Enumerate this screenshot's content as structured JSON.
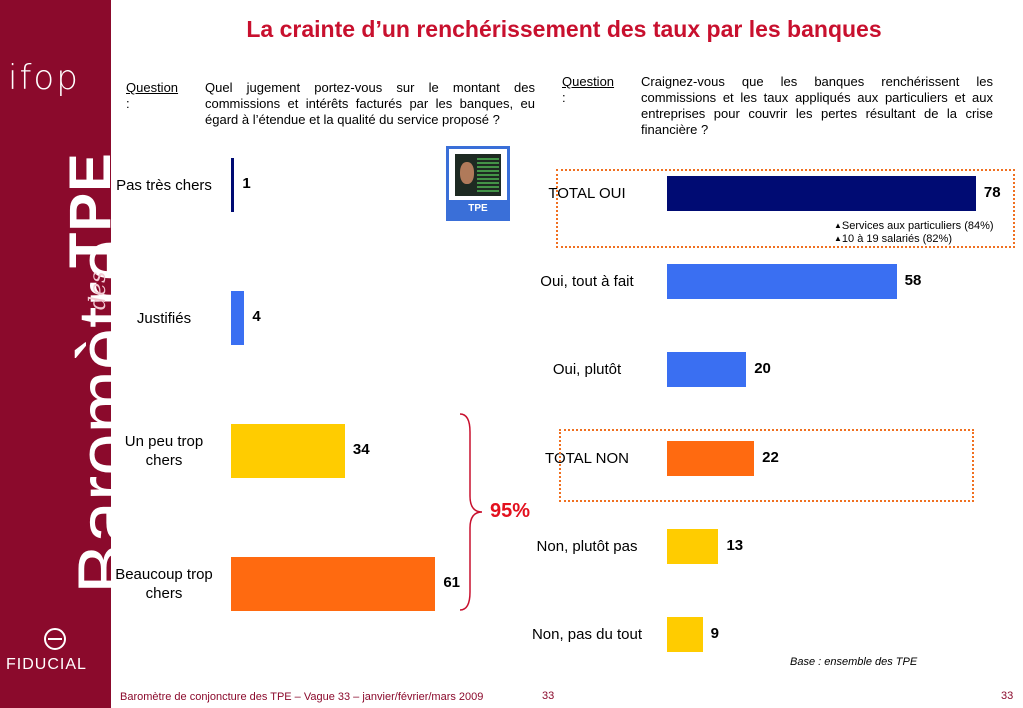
{
  "sidebar": {
    "logo": "ifop",
    "brand_main": "Baromètre",
    "brand_des": "des",
    "brand_tpe": "TPE",
    "company": "FIDUCIAL"
  },
  "title": "La crainte d’un renchérissement des taux par les banques",
  "left_question": {
    "label": "Question",
    "colon": ":",
    "text": "Quel jugement portez-vous sur le montant des commissions et intérêts facturés par les banques, eu égard à l’étendue et la qualité du service proposé ?"
  },
  "right_question": {
    "label": "Question",
    "colon": ":",
    "text": "Craignez-vous que les banques renchérissent les commissions et les taux appliqués aux particuliers et aux entreprises pour couvrir les pertes résultant de la crise financière ?"
  },
  "badge_label": "TPE",
  "colors": {
    "dark_navy": "#000b73",
    "blue": "#3a6ff2",
    "yellow": "#ffcc00",
    "orange": "#ff6a10",
    "accent_red": "#c8102e",
    "brand": "#8b0a2c"
  },
  "chart_data": [
    {
      "type": "bar",
      "orientation": "horizontal",
      "categories": [
        "Pas très chers",
        "Justifiés",
        "Un peu trop chers",
        "Beaucoup trop chers"
      ],
      "values": [
        1,
        4,
        34,
        61
      ],
      "colors": [
        "dark_navy",
        "blue",
        "yellow",
        "orange"
      ],
      "annotation": "95%"
    },
    {
      "type": "bar",
      "orientation": "horizontal",
      "categories": [
        "TOTAL OUI",
        "Oui, tout à fait",
        "Oui, plutôt",
        "TOTAL NON",
        "Non, plutôt pas",
        "Non, pas du tout"
      ],
      "values": [
        78,
        58,
        20,
        22,
        13,
        9
      ],
      "colors": [
        "dark_navy",
        "blue",
        "blue",
        "orange",
        "yellow",
        "yellow"
      ],
      "notes": [
        "Services aux particuliers (84%)",
        "10 à 19 salariés (82%)"
      ]
    }
  ],
  "base_note": "Base : ensemble des TPE",
  "footer": "Baromètre de conjoncture des TPE – Vague 33 – janvier/février/mars 2009",
  "page_num_center": "33",
  "page_num_right": "33"
}
